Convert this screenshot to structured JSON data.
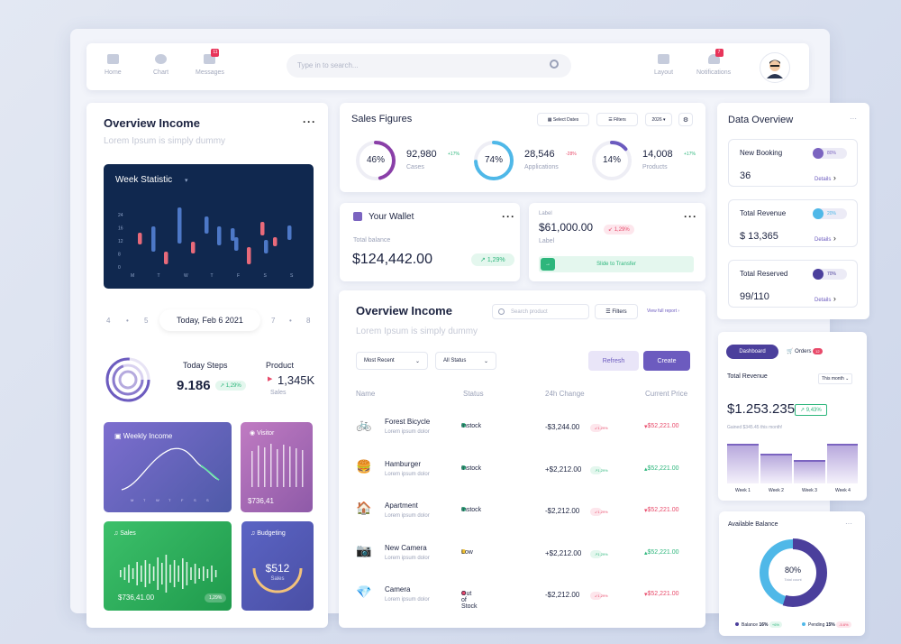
{
  "nav": {
    "home": "Home",
    "chart": "Chart",
    "messages": "Messages",
    "messages_badge": "11",
    "search_placeholder": "Type in to search...",
    "layout": "Layout",
    "notifications": "Notifications",
    "notifications_badge": "7"
  },
  "overview_left": {
    "title": "Overview Income",
    "subtitle": "Lorem Ipsum is simply dummy",
    "week_title": "Week Statistic",
    "week_y": [
      "24",
      "16",
      "12",
      "8",
      "0"
    ],
    "week_x": [
      "M",
      "T",
      "W",
      "T",
      "F",
      "S",
      "S"
    ],
    "dates": [
      "4",
      "•",
      "5",
      "7",
      "•",
      "8"
    ],
    "today": "Today, Feb 6 2021",
    "steps_label": "Today Steps",
    "steps_value": "9.186",
    "steps_change": "1,29%",
    "product_label": "Product",
    "product_value": "1,345K",
    "product_sub": "Sales",
    "weekly_income": "Weekly Income",
    "weekly_x": [
      "M",
      "T",
      "W",
      "T",
      "F",
      "S",
      "S"
    ],
    "visitor": "Visitor",
    "visitor_value": "$736,41",
    "sales": "Sales",
    "sales_value": "$736,41.00",
    "sales_change": "1,29%",
    "budgeting": "Budgeting",
    "budget_value": "$512",
    "budget_sub": "Sales"
  },
  "sales_figures": {
    "title": "Sales Figures",
    "select_dates": "Select Dates",
    "filters": "Filters",
    "year": "2026",
    "items": [
      {
        "pct": "46%",
        "value": "92,980",
        "change": "+17%",
        "label": "Cases"
      },
      {
        "pct": "74%",
        "value": "28,546",
        "change": "-28%",
        "label": "Applications"
      },
      {
        "pct": "14%",
        "value": "14,008",
        "change": "+17%",
        "label": "Products"
      }
    ]
  },
  "wallet": {
    "title": "Your Wallet",
    "balance_label": "Total balance",
    "balance": "$124,442.00",
    "change": "1,29%"
  },
  "label_card": {
    "top_label": "Label",
    "amount": "$61,000.00",
    "change": "1,29%",
    "label": "Label",
    "slide": "Slide to Transfer"
  },
  "overview_table": {
    "title": "Overview Income",
    "subtitle": "Lorem Ipsum is simply dummy",
    "search_placeholder": "Search product",
    "filters": "Filters",
    "view_full": "View full report",
    "most_recent": "Most Recent",
    "all_status": "All Status",
    "refresh": "Refresh",
    "create": "Create",
    "headers": [
      "Name",
      "Status",
      "24h Change",
      "Current Price"
    ],
    "rows": [
      {
        "icon": "🚲",
        "name": "Forest Bicycle",
        "desc": "Lorem ipsum dolor",
        "status": "Instock",
        "status_color": "#2db67c",
        "change": "-$3,244.00",
        "pct": "1,29%",
        "pct_type": "red",
        "price": "$52,221.00",
        "price_type": "red"
      },
      {
        "icon": "🍔",
        "name": "Hamburger",
        "desc": "Lorem ipsum dolor",
        "status": "Instock",
        "status_color": "#2db67c",
        "change": "+$2,212.00",
        "pct": "1,29%",
        "pct_type": "green",
        "price": "$52,221.00",
        "price_type": "green"
      },
      {
        "icon": "🏠",
        "name": "Apartment",
        "desc": "Lorem ipsum dolor",
        "status": "Instock",
        "status_color": "#2db67c",
        "change": "-$2,212.00",
        "pct": "1,29%",
        "pct_type": "red",
        "price": "$52,221.00",
        "price_type": "red"
      },
      {
        "icon": "📷",
        "name": "New Camera",
        "desc": "Lorem ipsum dolor",
        "status": "Low",
        "status_color": "#f2c230",
        "change": "+$2,212.00",
        "pct": "1,29%",
        "pct_type": "green",
        "price": "$52,221.00",
        "price_type": "green"
      },
      {
        "icon": "💎",
        "name": "Camera",
        "desc": "Lorem ipsum dolor",
        "status": "Out of Stock",
        "status_color": "#e84a6a",
        "change": "-$2,212.00",
        "pct": "1,29%",
        "pct_type": "red",
        "price": "$52,221.00",
        "price_type": "red"
      }
    ]
  },
  "data_overview": {
    "title": "Data Overview",
    "items": [
      {
        "label": "New Booking",
        "value": "36",
        "pct": "80%",
        "details": "Details",
        "color": "#7b64c0"
      },
      {
        "label": "Total Revenue",
        "value": "$ 13,365",
        "pct": "20%",
        "details": "Details",
        "color": "#4fb8e8"
      },
      {
        "label": "Total Reserved",
        "value": "99/110",
        "pct": "70%",
        "details": "Details",
        "color": "#4b3f9c"
      }
    ]
  },
  "revenue": {
    "tab_dashboard": "Dashboard",
    "tab_orders": "Orders",
    "orders_badge": "12",
    "title": "Total Revenue",
    "period": "This month",
    "value": "$1.253.235",
    "change": "9,43%",
    "gained": "Gained $345.45 this month!",
    "weeks": [
      "Week 1",
      "Week 2",
      "Week 3",
      "Week 4"
    ]
  },
  "balance": {
    "title": "Available Balance",
    "pct": "80%",
    "sub": "Total count",
    "balance_label": "Balance",
    "balance_pct": "16%",
    "balance_change": "+6%",
    "pending_label": "Pending",
    "pending_pct": "15%",
    "pending_change": "-5.6%"
  },
  "colors": {
    "accent": "#6c5bbf",
    "navy": "#10284f",
    "green": "#2db67c",
    "red": "#e84a6a"
  }
}
